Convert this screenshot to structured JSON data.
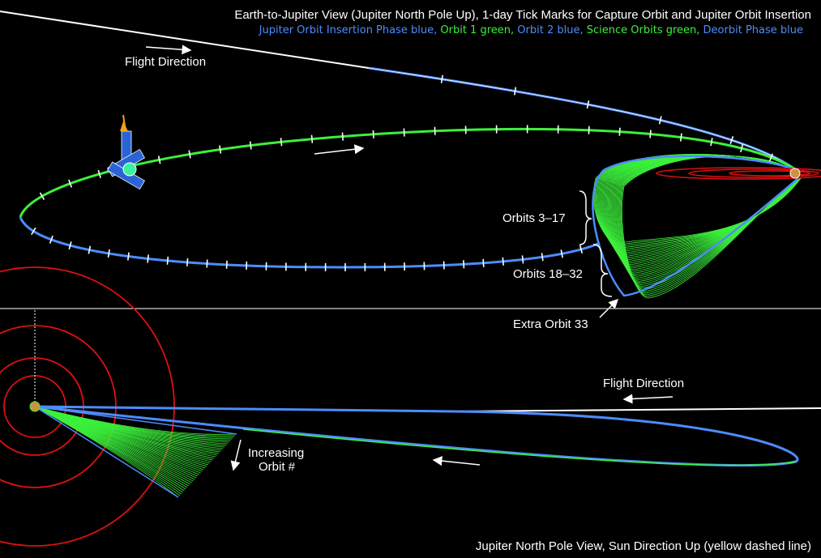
{
  "top_view": {
    "title": "Earth-to-Jupiter View (Jupiter North Pole Up), 1-day Tick Marks for Capture Orbit and Jupiter Orbit Insertion",
    "legend": [
      {
        "text": "Jupiter Orbit Insertion Phase blue,",
        "color": "#4d8cff"
      },
      {
        "text": "Orbit 1 green,",
        "color": "#3cf03c"
      },
      {
        "text": "Orbit 2 blue,",
        "color": "#4d8cff"
      },
      {
        "text": "Science Orbits green,",
        "color": "#3cf03c"
      },
      {
        "text": "Deorbit Phase blue",
        "color": "#4d8cff"
      }
    ],
    "flight_direction": "Flight Direction",
    "orbits_3_17": "Orbits 3–17",
    "orbits_18_32": "Orbits 18–32",
    "extra_orbit": "Extra Orbit 33"
  },
  "bottom_view": {
    "caption": "Jupiter North Pole View, Sun Direction Up (yellow dashed line)",
    "flight_direction": "Flight Direction",
    "increasing_orbit_line1": "Increasing",
    "increasing_orbit_line2": "Orbit #"
  },
  "colors": {
    "background": "#000000",
    "blue": "#4d8cff",
    "green": "#3cf03c",
    "red": "#e01010",
    "white": "#ffffff"
  },
  "icons": {
    "spacecraft": "juno-spacecraft-icon",
    "planet": "jupiter-icon"
  }
}
